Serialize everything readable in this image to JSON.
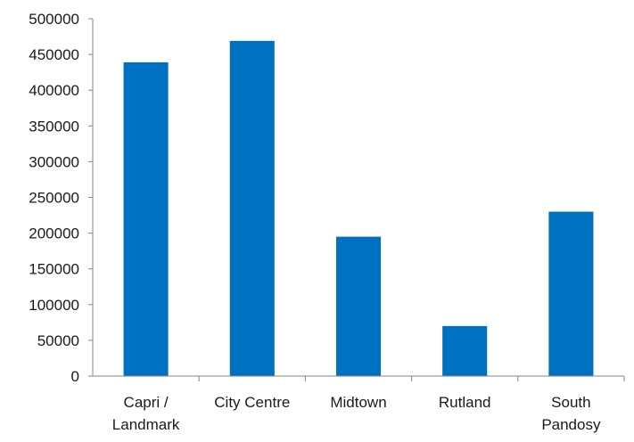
{
  "chart_data": {
    "type": "bar",
    "title": "",
    "xlabel": "",
    "ylabel": "",
    "categories": [
      [
        "Capri /",
        "Landmark"
      ],
      [
        "City Centre"
      ],
      [
        "Midtown"
      ],
      [
        "Rutland"
      ],
      [
        "South",
        "Pandosy"
      ]
    ],
    "values": [
      439000,
      469000,
      195000,
      70000,
      230000
    ],
    "ylim": [
      0,
      500000
    ],
    "yticks": [
      "0",
      "50000",
      "100000",
      "150000",
      "200000",
      "250000",
      "300000",
      "350000",
      "400000",
      "450000",
      "500000"
    ],
    "bar_color": "#0070c0",
    "axis_color": "#868686",
    "grid": false,
    "legend": "none"
  }
}
